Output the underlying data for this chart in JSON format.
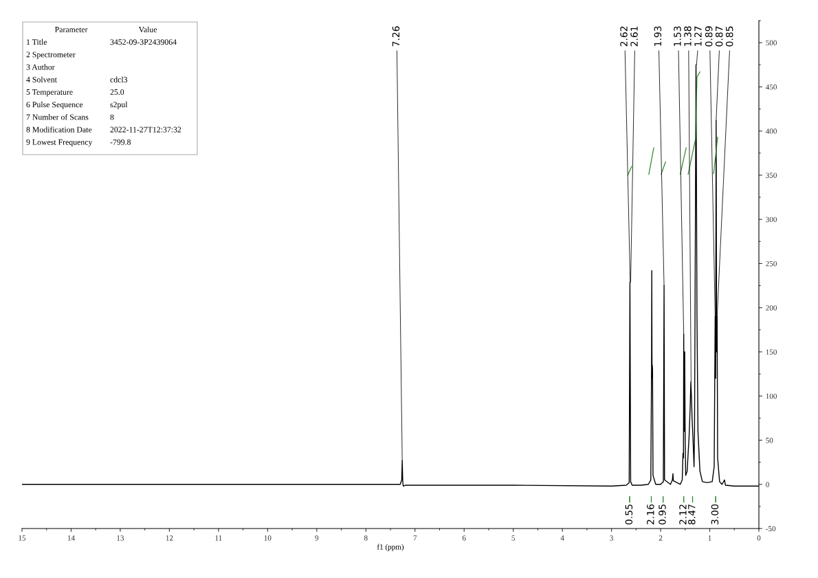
{
  "chart_data": {
    "type": "line",
    "xlabel": "f1 (ppm)",
    "xlim": [
      15,
      0
    ],
    "xticks": [
      15,
      14,
      13,
      12,
      11,
      10,
      9,
      8,
      7,
      6,
      5,
      4,
      3,
      2,
      1,
      0
    ],
    "ylim": [
      -50,
      525
    ],
    "yticks": [
      -50,
      0,
      50,
      100,
      150,
      200,
      250,
      300,
      350,
      400,
      450,
      500
    ],
    "grid": false,
    "legend": false,
    "marker": "none",
    "line_style": "solid",
    "series": [
      {
        "color": "#000000",
        "x": [
          15,
          10,
          8,
          7.3,
          7.27,
          7.26,
          7.25,
          7.24,
          7.2,
          5,
          3,
          2.7,
          2.64,
          2.625,
          2.61,
          2.58,
          2.4,
          2.25,
          2.2,
          2.185,
          2.18,
          2.175,
          2.17,
          2.165,
          2.155,
          2.1,
          2.0,
          1.945,
          1.93,
          1.92,
          1.8,
          1.76,
          1.75,
          1.74,
          1.6,
          1.56,
          1.545,
          1.535,
          1.53,
          1.52,
          1.51,
          1.5,
          1.49,
          1.46,
          1.42,
          1.4,
          1.385,
          1.37,
          1.36,
          1.34,
          1.32,
          1.31,
          1.3,
          1.28,
          1.26,
          1.24,
          1.2,
          1.15,
          1.05,
          0.95,
          0.91,
          0.89,
          0.88,
          0.87,
          0.86,
          0.85,
          0.84,
          0.8,
          0.75,
          0.7,
          0.68,
          0.5,
          0
        ],
        "values": [
          0,
          0,
          0,
          0,
          5,
          27,
          4,
          -2,
          -1,
          -1,
          -2,
          -1,
          2,
          229,
          3,
          -1,
          -1,
          0,
          5,
          130,
          242,
          120,
          135,
          130,
          10,
          0,
          0,
          3,
          225,
          5,
          0,
          5,
          12,
          4,
          0,
          5,
          35,
          30,
          170,
          60,
          150,
          50,
          10,
          15,
          55,
          85,
          116,
          95,
          75,
          50,
          20,
          60,
          190,
          475,
          190,
          60,
          15,
          3,
          2,
          3,
          20,
          190,
          120,
          412,
          150,
          190,
          30,
          3,
          0,
          5,
          -1,
          -2,
          -2
        ]
      },
      {
        "color": "#2e8b2e",
        "x": [
          2.67,
          2.59
        ],
        "values": [
          350,
          360
        ]
      },
      {
        "color": "#2e8b2e",
        "x": [
          2.24,
          2.14
        ],
        "values": [
          351,
          381
        ]
      },
      {
        "color": "#2e8b2e",
        "x": [
          1.99,
          1.9
        ],
        "values": [
          351,
          365
        ]
      },
      {
        "color": "#2e8b2e",
        "x": [
          1.6,
          1.48
        ],
        "values": [
          351,
          381
        ]
      },
      {
        "color": "#2e8b2e",
        "x": [
          1.44,
          1.29,
          1.26,
          1.2
        ],
        "values": [
          351,
          391,
          461,
          467
        ]
      },
      {
        "color": "#2e8b2e",
        "x": [
          0.92,
          0.84
        ],
        "values": [
          352,
          393
        ]
      }
    ],
    "annotations": [
      "Parameter",
      "Value",
      "1 Title",
      "3452-09-3P2439064",
      "2 Spectrometer",
      "3 Author",
      "4 Solvent",
      "cdcl3",
      "5 Temperature",
      "25.0",
      "6 Pulse Sequence",
      "s2pul",
      "7 Number of Scans",
      "8",
      "8 Modification Date",
      "2022-11-27T12:37:32",
      "9 Lowest Frequency",
      "-799.8",
      {
        "text": "7.26",
        "x": 7.26,
        "y": 27
      },
      {
        "text": "2.62",
        "x": 2.62,
        "y": 229
      },
      {
        "text": "2.61",
        "x": 2.61,
        "y": 229
      },
      {
        "text": "1.93",
        "x": 1.93,
        "y": 225
      },
      {
        "text": "1.53",
        "x": 1.53,
        "y": 170
      },
      {
        "text": "1.38",
        "x": 1.38,
        "y": 116
      },
      {
        "text": "1.27",
        "x": 1.27,
        "y": 475
      },
      {
        "text": "0.89",
        "x": 0.89,
        "y": 190
      },
      {
        "text": "0.87",
        "x": 0.87,
        "y": 412
      },
      {
        "text": "0.85",
        "x": 0.85,
        "y": 190
      },
      {
        "text": "0.55",
        "x": 2.63
      },
      {
        "text": "2.16",
        "x": 2.19
      },
      {
        "text": "0.95",
        "x": 1.95
      },
      {
        "text": "2.12",
        "x": 1.53
      },
      {
        "text": "8.47",
        "x": 1.35
      },
      {
        "text": "3.00",
        "x": 0.88
      }
    ]
  }
}
